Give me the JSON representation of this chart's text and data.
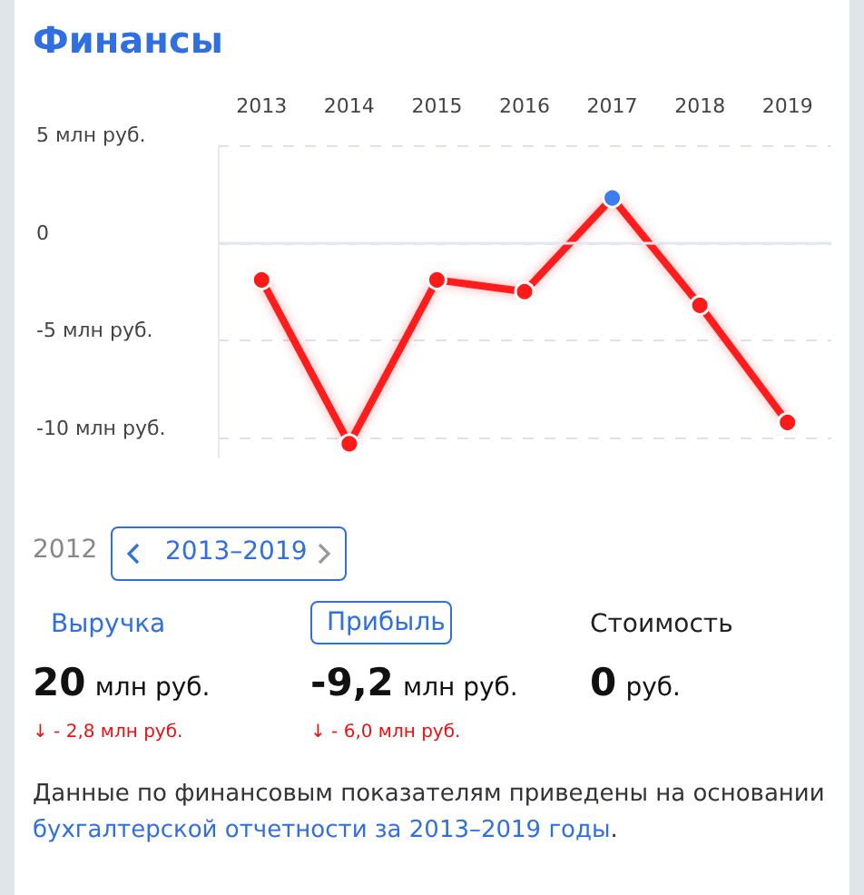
{
  "chart_data": {
    "type": "line",
    "title": "Финансы",
    "categories": [
      "2013",
      "2014",
      "2015",
      "2016",
      "2017",
      "2018",
      "2019"
    ],
    "series": [
      {
        "color": "#ff1a1a",
        "colors": [
          "#ff1a1a",
          "#ff1a1a",
          "#ff1a1a",
          "#ff1a1a",
          "#3f7cf0",
          "#ff1a1a",
          "#ff1a1a"
        ],
        "values": [
          -1.9,
          -10.3,
          -1.9,
          -2.5,
          2.3,
          -3.2,
          -9.2
        ]
      }
    ],
    "ylim": [
      -11,
      5
    ],
    "yticks": [
      {
        "value": 5,
        "label": "5 млн руб."
      },
      0,
      {
        "value": -5,
        "label": "-5 млн руб."
      },
      {
        "value": -10,
        "label": "-10 млн руб."
      }
    ],
    "ref_lines": [
      {
        "axis": "y",
        "value": 0,
        "color": "#e3e8ef",
        "line_style": "solid"
      }
    ],
    "grid": "y",
    "marker": "circle",
    "line_style": "solid",
    "annotations": [
      "2012",
      "2013–2019",
      "Выручка",
      "Прибыль",
      "Стоимость",
      "20",
      "млн руб.",
      "-9,2",
      "млн руб.",
      "0",
      "руб.",
      "↓ - 2,8 млн руб.",
      "↓ - 6,0 млн руб.",
      "Данные по финансовым показателям приведены на основании ",
      "бухгалтерской отчетности за 2013–2019 годы",
      "."
    ]
  }
}
